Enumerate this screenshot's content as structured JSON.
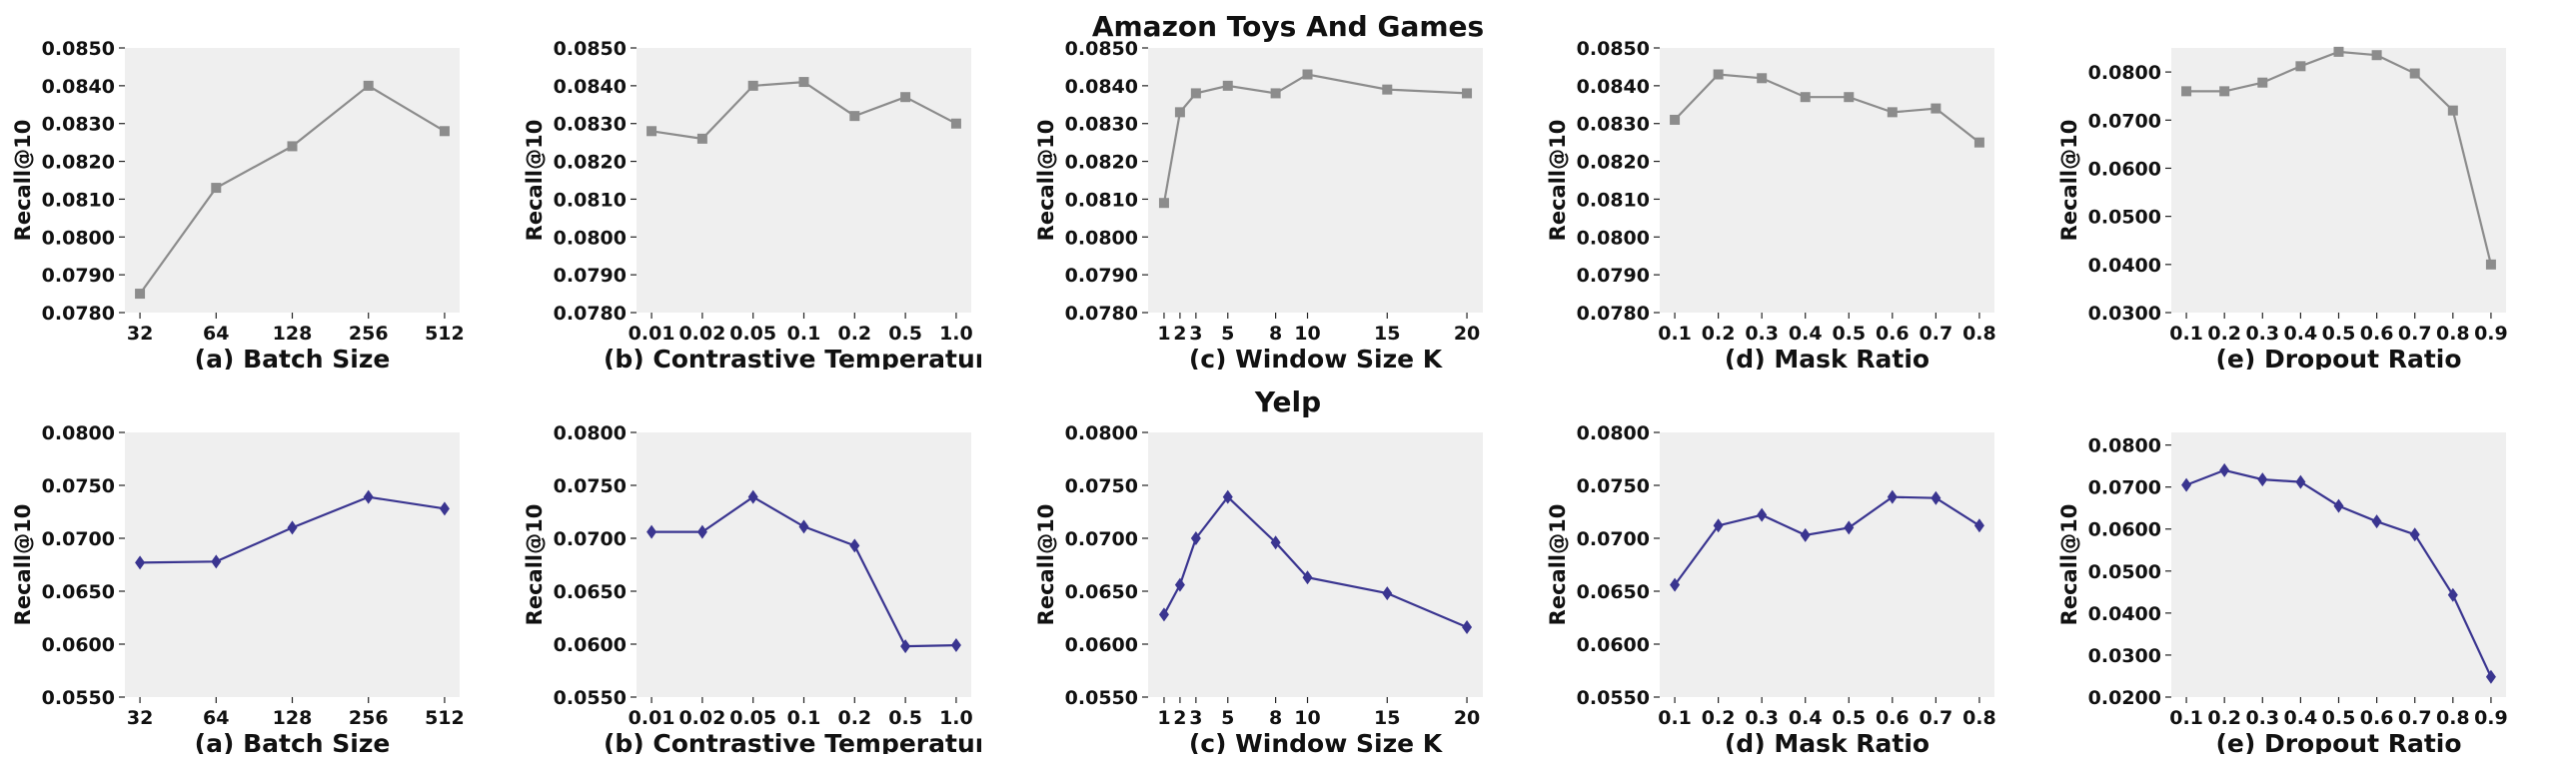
{
  "titles": {
    "top": "Amazon Toys And Games",
    "bottom": "Yelp"
  },
  "colors": {
    "top_series": "#8c8c8c",
    "bottom_series": "#3a3590",
    "plot_bg": "#efefef"
  },
  "chart_data": [
    {
      "id": "top-a",
      "type": "line",
      "title": "Amazon Toys And Games",
      "xlabel": "(a) Batch Size",
      "ylabel": "Recall@10",
      "marker": "square",
      "x": [
        32,
        64,
        128,
        256,
        512
      ],
      "xticks": [
        "32",
        "64",
        "128",
        "256",
        "512"
      ],
      "xscale": "categorical",
      "series": [
        {
          "values": [
            0.0785,
            0.0813,
            0.0824,
            0.084,
            0.0828
          ]
        }
      ],
      "ylim": [
        0.078,
        0.085
      ],
      "yticks": [
        "0.0780",
        "0.0790",
        "0.0800",
        "0.0810",
        "0.0820",
        "0.0830",
        "0.0840",
        "0.0850"
      ],
      "grid": false
    },
    {
      "id": "top-b",
      "type": "line",
      "xlabel": "(b) Contrastive Temperature",
      "ylabel": "Recall@10",
      "marker": "square",
      "x": [
        0.01,
        0.02,
        0.05,
        0.1,
        0.2,
        0.5,
        1.0
      ],
      "xticks": [
        "0.01",
        "0.02",
        "0.05",
        "0.1",
        "0.2",
        "0.5",
        "1.0"
      ],
      "xscale": "categorical",
      "series": [
        {
          "values": [
            0.0828,
            0.0826,
            0.084,
            0.0841,
            0.0832,
            0.0837,
            0.083
          ]
        }
      ],
      "ylim": [
        0.078,
        0.085
      ],
      "yticks": [
        "0.0780",
        "0.0790",
        "0.0800",
        "0.0810",
        "0.0820",
        "0.0830",
        "0.0840",
        "0.0850"
      ],
      "grid": false
    },
    {
      "id": "top-c",
      "type": "line",
      "xlabel": "(c) Window Size K",
      "ylabel": "Recall@10",
      "marker": "square",
      "x": [
        1,
        2,
        3,
        5,
        8,
        10,
        15,
        20
      ],
      "xticks": [
        "1",
        "2",
        "3",
        "5",
        "8",
        "10",
        "15",
        "20"
      ],
      "xscale": "linear",
      "xlim": [
        0,
        21
      ],
      "series": [
        {
          "values": [
            0.0809,
            0.0833,
            0.0838,
            0.084,
            0.0838,
            0.0843,
            0.0839,
            0.0838
          ]
        }
      ],
      "ylim": [
        0.078,
        0.085
      ],
      "yticks": [
        "0.0780",
        "0.0790",
        "0.0800",
        "0.0810",
        "0.0820",
        "0.0830",
        "0.0840",
        "0.0850"
      ],
      "grid": false
    },
    {
      "id": "top-d",
      "type": "line",
      "xlabel": "(d) Mask Ratio",
      "ylabel": "Recall@10",
      "marker": "square",
      "x": [
        0.1,
        0.2,
        0.3,
        0.4,
        0.5,
        0.6,
        0.7,
        0.8
      ],
      "xticks": [
        "0.1",
        "0.2",
        "0.3",
        "0.4",
        "0.5",
        "0.6",
        "0.7",
        "0.8"
      ],
      "xscale": "categorical",
      "series": [
        {
          "values": [
            0.0831,
            0.0843,
            0.0842,
            0.0837,
            0.0837,
            0.0833,
            0.0834,
            0.0825
          ]
        }
      ],
      "ylim": [
        0.078,
        0.085
      ],
      "yticks": [
        "0.0780",
        "0.0790",
        "0.0800",
        "0.0810",
        "0.0820",
        "0.0830",
        "0.0840",
        "0.0850"
      ],
      "grid": false
    },
    {
      "id": "top-e",
      "type": "line",
      "xlabel": "(e) Dropout Ratio",
      "ylabel": "Recall@10",
      "marker": "square",
      "x": [
        0.1,
        0.2,
        0.3,
        0.4,
        0.5,
        0.6,
        0.7,
        0.8,
        0.9
      ],
      "xticks": [
        "0.1",
        "0.2",
        "0.3",
        "0.4",
        "0.5",
        "0.6",
        "0.7",
        "0.8",
        "0.9"
      ],
      "xscale": "categorical",
      "series": [
        {
          "values": [
            0.076,
            0.076,
            0.0778,
            0.0812,
            0.0842,
            0.0835,
            0.0797,
            0.072,
            0.04
          ]
        }
      ],
      "ylim": [
        0.03,
        0.085
      ],
      "yticks": [
        "0.0300",
        "0.0400",
        "0.0500",
        "0.0600",
        "0.0700",
        "0.0800"
      ],
      "grid": false
    },
    {
      "id": "bot-a",
      "type": "line",
      "title": "Yelp",
      "xlabel": "(a) Batch Size",
      "ylabel": "Recall@10",
      "marker": "diamond",
      "x": [
        32,
        64,
        128,
        256,
        512
      ],
      "xticks": [
        "32",
        "64",
        "128",
        "256",
        "512"
      ],
      "xscale": "categorical",
      "series": [
        {
          "values": [
            0.0677,
            0.0678,
            0.071,
            0.0739,
            0.0728
          ]
        }
      ],
      "ylim": [
        0.055,
        0.08
      ],
      "yticks": [
        "0.0550",
        "0.0600",
        "0.0650",
        "0.0700",
        "0.0750",
        "0.0800"
      ],
      "grid": false
    },
    {
      "id": "bot-b",
      "type": "line",
      "xlabel": "(b) Contrastive Temperature",
      "ylabel": "Recall@10",
      "marker": "diamond",
      "x": [
        0.01,
        0.02,
        0.05,
        0.1,
        0.2,
        0.5,
        1.0
      ],
      "xticks": [
        "0.01",
        "0.02",
        "0.05",
        "0.1",
        "0.2",
        "0.5",
        "1.0"
      ],
      "xscale": "categorical",
      "series": [
        {
          "values": [
            0.0706,
            0.0706,
            0.0739,
            0.0711,
            0.0693,
            0.0598,
            0.0599
          ]
        }
      ],
      "ylim": [
        0.055,
        0.08
      ],
      "yticks": [
        "0.0550",
        "0.0600",
        "0.0650",
        "0.0700",
        "0.0750",
        "0.0800"
      ],
      "grid": false
    },
    {
      "id": "bot-c",
      "type": "line",
      "xlabel": "(c) Window Size K",
      "ylabel": "Recall@10",
      "marker": "diamond",
      "x": [
        1,
        2,
        3,
        5,
        8,
        10,
        15,
        20
      ],
      "xticks": [
        "1",
        "2",
        "3",
        "5",
        "8",
        "10",
        "15",
        "20"
      ],
      "xscale": "linear",
      "xlim": [
        0,
        21
      ],
      "series": [
        {
          "values": [
            0.0628,
            0.0656,
            0.07,
            0.0739,
            0.0696,
            0.0663,
            0.0648,
            0.0616
          ]
        }
      ],
      "ylim": [
        0.055,
        0.08
      ],
      "yticks": [
        "0.0550",
        "0.0600",
        "0.0650",
        "0.0700",
        "0.0750",
        "0.0800"
      ],
      "grid": false
    },
    {
      "id": "bot-d",
      "type": "line",
      "xlabel": "(d) Mask Ratio",
      "ylabel": "Recall@10",
      "marker": "diamond",
      "x": [
        0.1,
        0.2,
        0.3,
        0.4,
        0.5,
        0.6,
        0.7,
        0.8
      ],
      "xticks": [
        "0.1",
        "0.2",
        "0.3",
        "0.4",
        "0.5",
        "0.6",
        "0.7",
        "0.8"
      ],
      "xscale": "categorical",
      "series": [
        {
          "values": [
            0.0656,
            0.0712,
            0.0722,
            0.0703,
            0.071,
            0.0739,
            0.0738,
            0.0712
          ]
        }
      ],
      "ylim": [
        0.055,
        0.08
      ],
      "yticks": [
        "0.0550",
        "0.0600",
        "0.0650",
        "0.0700",
        "0.0750",
        "0.0800"
      ],
      "grid": false
    },
    {
      "id": "bot-e",
      "type": "line",
      "xlabel": "(e) Dropout Ratio",
      "ylabel": "Recall@10",
      "marker": "diamond",
      "x": [
        0.1,
        0.2,
        0.3,
        0.4,
        0.5,
        0.6,
        0.7,
        0.8,
        0.9
      ],
      "xticks": [
        "0.1",
        "0.2",
        "0.3",
        "0.4",
        "0.5",
        "0.6",
        "0.7",
        "0.8",
        "0.9"
      ],
      "xscale": "categorical",
      "series": [
        {
          "values": [
            0.0705,
            0.074,
            0.0718,
            0.0712,
            0.0655,
            0.0618,
            0.0587,
            0.0443,
            0.0248
          ]
        }
      ],
      "ylim": [
        0.02,
        0.083
      ],
      "yticks": [
        "0.0200",
        "0.0300",
        "0.0400",
        "0.0500",
        "0.0600",
        "0.0700",
        "0.0800"
      ],
      "grid": false
    }
  ]
}
